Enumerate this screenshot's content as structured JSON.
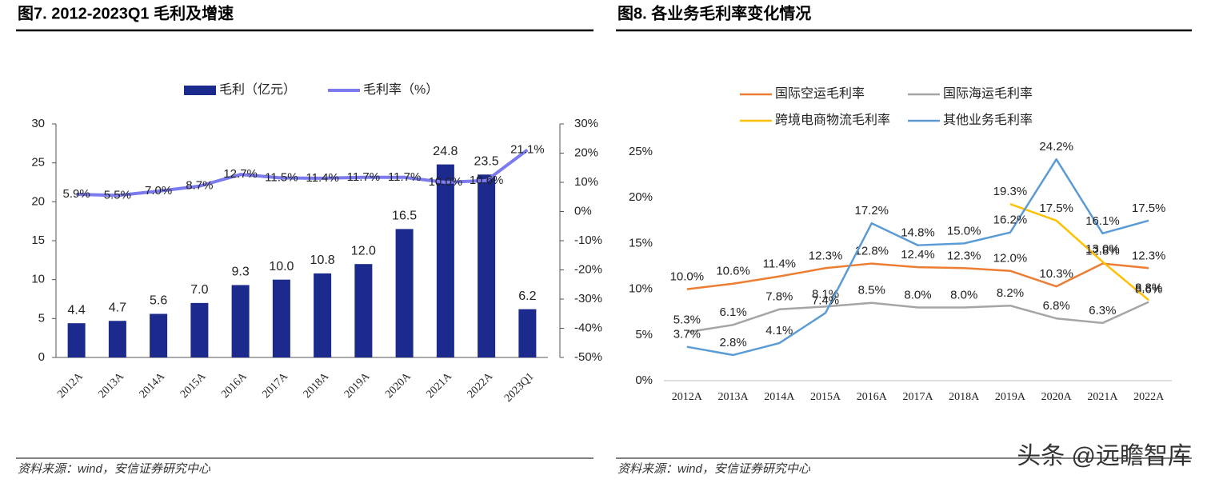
{
  "chart_data": [
    {
      "type": "bar",
      "title": "图7. 2012-2023Q1 毛利及增速",
      "source": "资料来源：wind，安信证券研究中心",
      "categories": [
        "2012A",
        "2013A",
        "2014A",
        "2015A",
        "2016A",
        "2017A",
        "2018A",
        "2019A",
        "2020A",
        "2021A",
        "2022A",
        "2023Q1"
      ],
      "series": [
        {
          "name": "毛利（亿元）",
          "type": "bar",
          "color": "#1b2a8c",
          "values": [
            4.4,
            4.7,
            5.6,
            7.0,
            9.3,
            10.0,
            10.8,
            12.0,
            16.5,
            24.8,
            23.5,
            6.2
          ],
          "value_labels": [
            "4.4",
            "4.7",
            "5.6",
            "7.0",
            "9.3",
            "10.0",
            "10.8",
            "12.0",
            "16.5",
            "24.8",
            "23.5",
            "6.2"
          ]
        },
        {
          "name": "毛利率（%）",
          "type": "line",
          "axis": "y2",
          "color": "#7b7bef",
          "values": [
            5.9,
            5.5,
            7.0,
            8.7,
            12.7,
            11.5,
            11.4,
            11.7,
            11.7,
            10.0,
            10.6,
            21.1
          ],
          "value_labels": [
            "5.9%",
            "5.5%",
            "7.0%",
            "8.7%",
            "12.7%",
            "11.5%",
            "11.4%",
            "11.7%",
            "11.7%",
            "10.0%",
            "10.6%",
            "21.1%"
          ]
        }
      ],
      "ylim": [
        0,
        30
      ],
      "yticks": [
        0,
        5,
        10,
        15,
        20,
        25,
        30
      ],
      "y2lim": [
        -50,
        30
      ],
      "y2ticks": [
        {
          "value": -50,
          "label": "-50%"
        },
        {
          "value": -40,
          "label": "-40%"
        },
        {
          "value": -30,
          "label": "-30%"
        },
        {
          "value": -20,
          "label": "-20%"
        },
        {
          "value": -10,
          "label": "-10%"
        },
        {
          "value": 0,
          "label": "0%"
        },
        {
          "value": 10,
          "label": "10%"
        },
        {
          "value": 20,
          "label": "20%"
        },
        {
          "value": 30,
          "label": "30%"
        }
      ],
      "legend": "top"
    },
    {
      "type": "line",
      "title": "图8. 各业务毛利率变化情况",
      "source": "资料来源：wind，安信证券研究中心",
      "categories": [
        "2012A",
        "2013A",
        "2014A",
        "2015A",
        "2016A",
        "2017A",
        "2018A",
        "2019A",
        "2020A",
        "2021A",
        "2022A"
      ],
      "series": [
        {
          "name": "国际空运毛利率",
          "color": "#ed7d31",
          "values": [
            10.0,
            10.6,
            11.4,
            12.3,
            12.8,
            12.4,
            12.3,
            12.0,
            10.3,
            12.8,
            12.3
          ],
          "value_labels": [
            "10.0%",
            "10.6%",
            "11.4%",
            "12.3%",
            "12.8%",
            "12.4%",
            "12.3%",
            "12.0%",
            "10.3%",
            "12.8%",
            "12.3%"
          ]
        },
        {
          "name": "国际海运毛利率",
          "color": "#a5a5a5",
          "values": [
            5.3,
            6.1,
            7.8,
            8.1,
            8.5,
            8.0,
            8.0,
            8.2,
            6.8,
            6.3,
            8.6
          ],
          "value_labels": [
            "5.3%",
            "6.1%",
            "7.8%",
            "8.1%",
            "8.5%",
            "8.0%",
            "8.0%",
            "8.2%",
            "6.8%",
            "6.3%",
            "8.6%"
          ]
        },
        {
          "name": "跨境电商物流毛利率",
          "color": "#ffc000",
          "values": [
            null,
            null,
            null,
            null,
            null,
            null,
            null,
            19.3,
            17.5,
            13.0,
            8.8
          ],
          "value_labels": [
            null,
            null,
            null,
            null,
            null,
            null,
            null,
            "19.3%",
            "17.5%",
            "13.0%",
            "8.8%"
          ]
        },
        {
          "name": "其他业务毛利率",
          "color": "#5b9bd5",
          "values": [
            3.7,
            2.8,
            4.1,
            7.4,
            17.2,
            14.8,
            15.0,
            16.2,
            24.2,
            16.1,
            17.5
          ],
          "value_labels": [
            "3.7%",
            "2.8%",
            "4.1%",
            "7.4%",
            "17.2%",
            "14.8%",
            "15.0%",
            "16.2%",
            "24.2%",
            "16.1%",
            "17.5%"
          ]
        }
      ],
      "ylim": [
        0,
        25
      ],
      "yticks": [
        {
          "value": 0,
          "label": "0%"
        },
        {
          "value": 5,
          "label": "5%"
        },
        {
          "value": 10,
          "label": "10%"
        },
        {
          "value": 15,
          "label": "15%"
        },
        {
          "value": 20,
          "label": "20%"
        },
        {
          "value": 25,
          "label": "25%"
        }
      ],
      "legend": "top"
    }
  ],
  "watermark": "头条 @远瞻智库"
}
